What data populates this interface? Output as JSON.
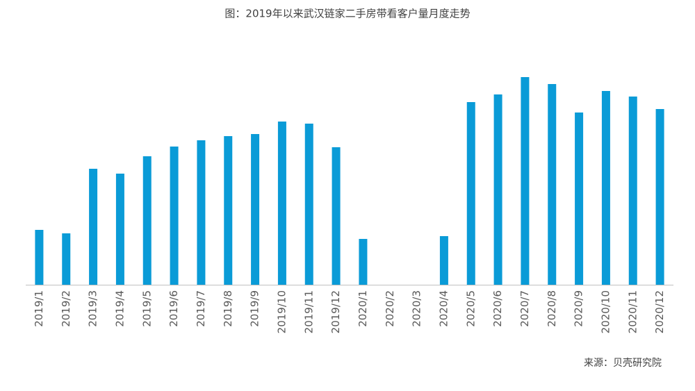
{
  "chart_data": {
    "type": "bar",
    "title": "图：2019年以来武汉链家二手房带看客户量月度走势",
    "source": "来源：贝壳研究院",
    "categories": [
      "2019/1",
      "2019/2",
      "2019/3",
      "2019/4",
      "2019/5",
      "2019/6",
      "2019/7",
      "2019/8",
      "2019/9",
      "2019/10",
      "2019/11",
      "2019/12",
      "2020/1",
      "2020/2",
      "2020/3",
      "2020/4",
      "2020/5",
      "2020/6",
      "2020/7",
      "2020/8",
      "2020/9",
      "2020/10",
      "2020/11",
      "2020/12"
    ],
    "values": [
      79,
      74,
      167,
      160,
      185,
      199,
      208,
      214,
      217,
      235,
      232,
      198,
      66,
      0,
      0,
      70,
      263,
      274,
      299,
      289,
      248,
      279,
      271,
      253
    ],
    "color": "#0a9bd7",
    "ylim": [
      0,
      300
    ]
  }
}
